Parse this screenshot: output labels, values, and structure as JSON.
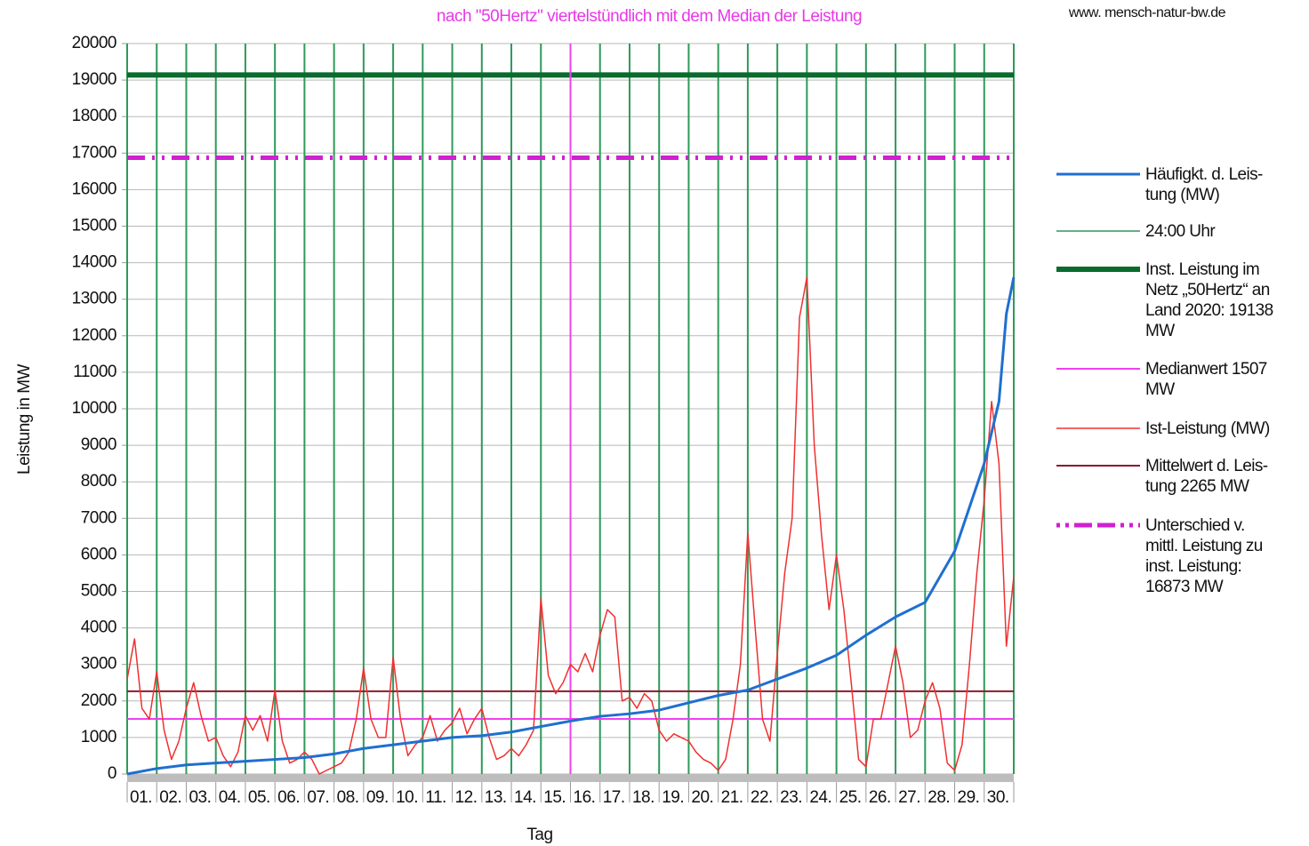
{
  "chart_data": {
    "type": "line",
    "title": "nach \"50Hertz\" viertelstündlich mit dem Median der Leistung",
    "source": "www. mensch-natur-bw.de",
    "ylabel": "Leistung in MW",
    "xlabel": "Tag",
    "categories": [
      "01.",
      "02.",
      "03.",
      "04.",
      "05.",
      "06.",
      "07.",
      "08.",
      "09.",
      "10.",
      "11.",
      "12.",
      "13.",
      "14.",
      "15.",
      "16.",
      "17.",
      "18.",
      "19.",
      "20.",
      "21.",
      "22.",
      "23.",
      "24.",
      "25.",
      "26.",
      "27.",
      "28.",
      "29.",
      "30."
    ],
    "xlim": [
      0,
      30
    ],
    "ylim": [
      0,
      20000
    ],
    "yticks": [
      0,
      1000,
      2000,
      3000,
      4000,
      5000,
      6000,
      7000,
      8000,
      9000,
      10000,
      11000,
      12000,
      13000,
      14000,
      15000,
      16000,
      17000,
      18000,
      19000,
      20000
    ],
    "grid": true,
    "legend": "right",
    "series": [
      {
        "name": "Häufigkt. d. Leis-\ntung (MW)",
        "color": "#1f6fd0",
        "kind": "line",
        "x": [
          0,
          1,
          2,
          3,
          4,
          5,
          6,
          7,
          8,
          9,
          10,
          11,
          12,
          13,
          14,
          15,
          16,
          17,
          18,
          19,
          20,
          21,
          22,
          23,
          24,
          25,
          26,
          27,
          28,
          29,
          29.5,
          29.75,
          30
        ],
        "values": [
          0,
          150,
          250,
          300,
          350,
          400,
          450,
          550,
          700,
          800,
          900,
          1000,
          1050,
          1150,
          1300,
          1450,
          1580,
          1650,
          1750,
          1950,
          2150,
          2300,
          2600,
          2900,
          3250,
          3800,
          4300,
          4700,
          6100,
          8500,
          10200,
          12600,
          13600
        ]
      },
      {
        "name": "24:00 Uhr",
        "color": "#2e9a5a",
        "kind": "days"
      },
      {
        "name": "Inst. Leistung im\nNetz „50Hertz“ an\nLand 2020: 19138\nMW",
        "color": "#0b6b2e",
        "kind": "hline",
        "value": 19138
      },
      {
        "name": "Medianwert 1507\nMW",
        "color": "#f040f0",
        "kind": "hline",
        "value": 1507,
        "vline_x": 15
      },
      {
        "name": "Ist-Leistung (MW)",
        "color": "#f03030",
        "kind": "line",
        "x": [
          0,
          0.25,
          0.5,
          0.75,
          1,
          1.25,
          1.5,
          1.75,
          2,
          2.25,
          2.5,
          2.75,
          3,
          3.25,
          3.5,
          3.75,
          4,
          4.25,
          4.5,
          4.75,
          5,
          5.25,
          5.5,
          5.75,
          6,
          6.25,
          6.5,
          6.75,
          7,
          7.25,
          7.5,
          7.75,
          8,
          8.25,
          8.5,
          8.75,
          9,
          9.25,
          9.5,
          9.75,
          10,
          10.25,
          10.5,
          10.75,
          11,
          11.25,
          11.5,
          11.75,
          12,
          12.25,
          12.5,
          12.75,
          13,
          13.25,
          13.5,
          13.75,
          14,
          14.25,
          14.5,
          14.75,
          15,
          15.25,
          15.5,
          15.75,
          16,
          16.25,
          16.5,
          16.75,
          17,
          17.25,
          17.5,
          17.75,
          18,
          18.25,
          18.5,
          18.75,
          19,
          19.25,
          19.5,
          19.75,
          20,
          20.25,
          20.5,
          20.75,
          21,
          21.25,
          21.5,
          21.75,
          22,
          22.25,
          22.5,
          22.75,
          23,
          23.25,
          23.5,
          23.75,
          24,
          24.25,
          24.5,
          24.75,
          25,
          25.25,
          25.5,
          25.75,
          26,
          26.25,
          26.5,
          26.75,
          27,
          27.25,
          27.5,
          27.75,
          28,
          28.25,
          28.5,
          28.75,
          29,
          29.25,
          29.5,
          29.75,
          30
        ],
        "values": [
          2600,
          3700,
          1800,
          1500,
          2800,
          1200,
          400,
          900,
          1800,
          2500,
          1600,
          900,
          1000,
          500,
          200,
          600,
          1600,
          1200,
          1600,
          900,
          2300,
          900,
          300,
          400,
          600,
          400,
          0,
          100,
          200,
          300,
          600,
          1500,
          2900,
          1500,
          1000,
          1000,
          3200,
          1500,
          500,
          800,
          1000,
          1600,
          900,
          1200,
          1400,
          1800,
          1100,
          1500,
          1800,
          1000,
          400,
          500,
          700,
          500,
          800,
          1200,
          4800,
          2700,
          2200,
          2500,
          3000,
          2800,
          3300,
          2800,
          3800,
          4500,
          4300,
          2000,
          2100,
          1800,
          2200,
          2000,
          1200,
          900,
          1100,
          1000,
          900,
          600,
          400,
          300,
          100,
          400,
          1500,
          3000,
          6600,
          4000,
          1500,
          900,
          3300,
          5500,
          7000,
          12500,
          13600,
          9000,
          6500,
          4500,
          6000,
          4500,
          2500,
          400,
          200,
          1500,
          1500,
          2500,
          3500,
          2500,
          1000,
          1200,
          2000,
          2500,
          1800,
          300,
          100,
          800,
          3000,
          5500,
          7500,
          10200,
          8500,
          3500,
          5400
        ]
      },
      {
        "name": "Mittelwert d. Leis-\ntung 2265 MW",
        "color": "#8b1a2a",
        "kind": "hline",
        "value": 2265
      },
      {
        "name": "Unterschied v.\nmittl. Leistung zu\ninst. Leistung:\n16873 MW",
        "color": "#d020d0",
        "kind": "hline",
        "value": 16873,
        "dash": "dashdot"
      }
    ]
  }
}
